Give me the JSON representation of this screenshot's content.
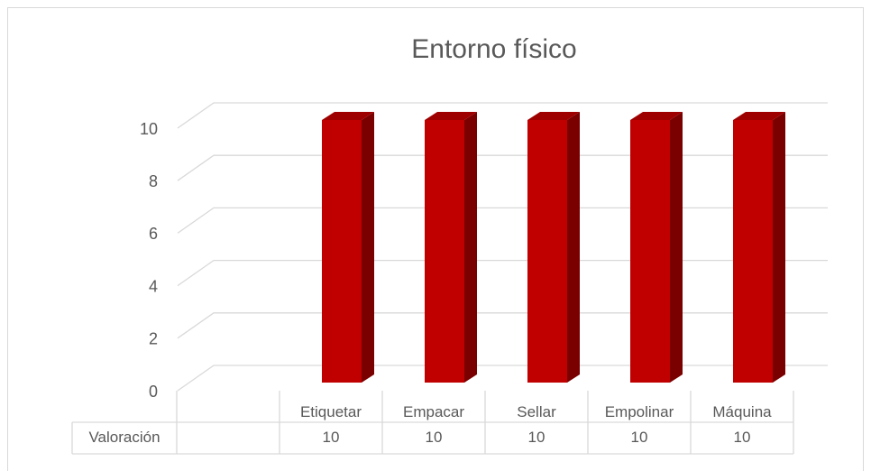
{
  "chart_data": {
    "type": "bar3d",
    "title": "Entorno físico",
    "categories": [
      "Etiquetar",
      "Empacar",
      "Sellar",
      "Empolinar",
      "Máquina"
    ],
    "series": [
      {
        "name": "Valoración",
        "color": "#c00000",
        "values": [
          10,
          10,
          10,
          10,
          10
        ]
      }
    ],
    "ylim": [
      0,
      10
    ],
    "yticks": [
      0,
      2,
      4,
      6,
      8,
      10
    ],
    "grid": true,
    "data_table": true
  }
}
